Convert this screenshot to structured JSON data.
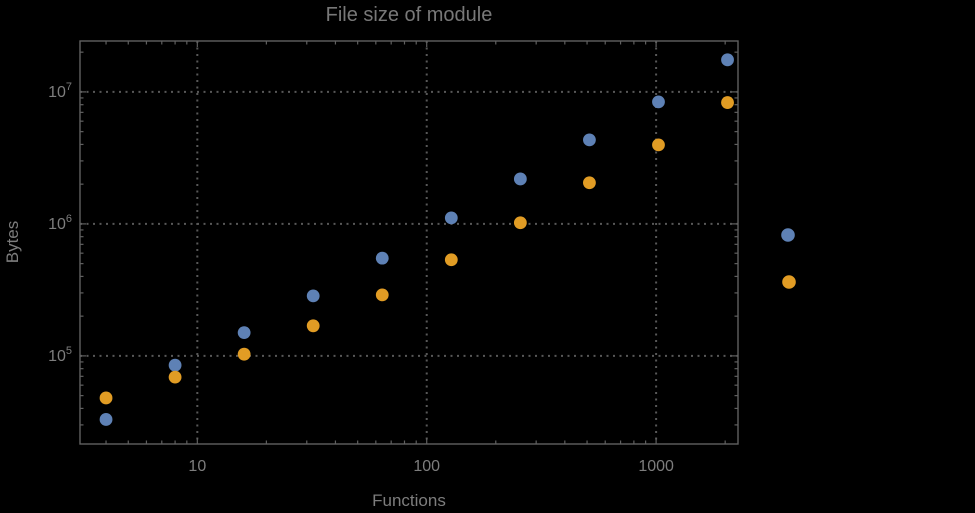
{
  "window": {
    "background_color": "#000000"
  },
  "chart_data": {
    "type": "scatter",
    "title": "File size of module",
    "xlabel": "Functions",
    "ylabel": "Bytes",
    "x_scale": "log",
    "y_scale": "log",
    "grid": "dotted-major-only",
    "x": [
      4,
      8,
      16,
      32,
      64,
      128,
      256,
      512,
      1024,
      2048
    ],
    "series": [
      {
        "name": "series-1-blue",
        "color": "#5e81b5",
        "values": [
          33000,
          85000,
          150000,
          285000,
          550000,
          1110000,
          2190000,
          4330000,
          8400000,
          17500000
        ]
      },
      {
        "name": "series-2-orange",
        "color": "#e19c24",
        "values": [
          48000,
          69000,
          103000,
          169000,
          290000,
          535000,
          1020000,
          2050000,
          3970000,
          8300000
        ]
      }
    ],
    "x_ticks": {
      "major_values": [
        10,
        100,
        1000
      ],
      "major_labels": [
        "10",
        "100",
        "1000"
      ]
    },
    "y_ticks": {
      "major_base": "10",
      "major_exponents": [
        "5",
        "6",
        "7"
      ]
    },
    "xlim": [
      3.08,
      2275
    ],
    "ylim": [
      21500,
      24300000
    ],
    "legend": {
      "position": "right-outside",
      "labels_visible": false,
      "marker_colors": [
        "#5e81b5",
        "#e19c24"
      ]
    }
  },
  "styles": {
    "frame_color": "#606060",
    "grid_color": "#585858",
    "tick_label_color": "#7d7d7d",
    "title_color": "#787878",
    "axis_label_color": "#7d7d7d"
  }
}
